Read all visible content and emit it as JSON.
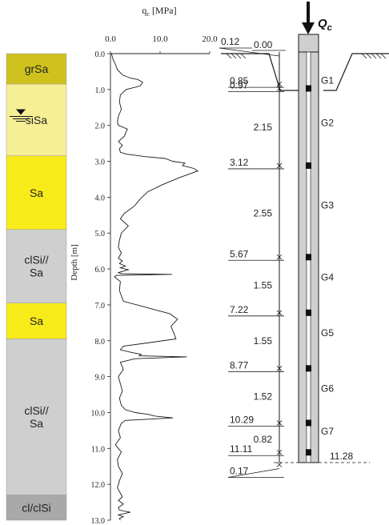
{
  "soil_column": {
    "layers": [
      {
        "label": "grSa",
        "color": "#cfc21e",
        "top": 0.0,
        "bottom": 0.85
      },
      {
        "label": "siSa",
        "color": "#f7ef95",
        "top": 0.85,
        "bottom": 2.85
      },
      {
        "label": "Sa",
        "color": "#f8eb1a",
        "top": 2.85,
        "bottom": 4.9
      },
      {
        "label": "clSi// Sa",
        "label_lines": [
          "clSi//",
          "Sa"
        ],
        "color": "#cfcfcf",
        "top": 4.9,
        "bottom": 6.95
      },
      {
        "label": "Sa",
        "color": "#f8eb1a",
        "top": 6.95,
        "bottom": 7.95
      },
      {
        "label": "clSi// Sa",
        "label_lines": [
          "clSi//",
          "Sa"
        ],
        "color": "#cfcfcf",
        "top": 7.95,
        "bottom": 12.3
      },
      {
        "label": "cl/clSi",
        "color": "#a9a9a9",
        "top": 12.3,
        "bottom": 13.0
      }
    ],
    "water_table_depth": 1.75
  },
  "cpt_chart": {
    "xlabel": "q",
    "xlabel_sub": "c",
    "xlabel_unit": " [MPa]",
    "ylabel": "Depth [m]",
    "xlim": [
      0,
      20
    ],
    "ylim": [
      0,
      13
    ],
    "xticks": [
      "0.0",
      "10.0",
      "20.0"
    ],
    "yticks": [
      "0.0",
      "1.0",
      "2.0",
      "3.0",
      "4.0",
      "5.0",
      "6.0",
      "7.0",
      "8.0",
      "9.0",
      "10.0",
      "11.0",
      "12.0",
      "13.0"
    ]
  },
  "chart_data": {
    "type": "line",
    "xlabel": "qc [MPa]",
    "ylabel": "Depth [m]",
    "xlim": [
      0,
      20
    ],
    "ylim": [
      0,
      13
    ],
    "series": [
      {
        "x": [
          0.2,
          0.5,
          1.0,
          1.4,
          2.5,
          4.0,
          5.5,
          6.5,
          6.0,
          3.2,
          2.0,
          1.8,
          2.2,
          1.6,
          1.4,
          1.6,
          3.4,
          2.8,
          1.6,
          2.4,
          1.8,
          2.0,
          3.2,
          7.0,
          11.0,
          12.5,
          15.0,
          14.5,
          16.8,
          17.6,
          16.0,
          14.0,
          10.5,
          7.5,
          6.0,
          4.8,
          2.8,
          2.0,
          3.6,
          2.2,
          1.8,
          1.6,
          2.2,
          1.6,
          2.4,
          1.8,
          3.0,
          2.0,
          3.6,
          2.4,
          1.6,
          2.2,
          12.4,
          1.2,
          0.8,
          2.0,
          1.8,
          2.6,
          8.0,
          12.0,
          13.5,
          12.2,
          12.8,
          13.2,
          8.0,
          2.6,
          2.0,
          4.0,
          6.2,
          5.8,
          15.4,
          5.0,
          2.0,
          2.6,
          1.6,
          2.0,
          2.4,
          1.8,
          2.2,
          3.0,
          5.0,
          7.5,
          9.0,
          12.6,
          3.0,
          2.2,
          1.6,
          2.0,
          1.0,
          2.2,
          1.4,
          1.6,
          2.4,
          1.8,
          1.4,
          2.0,
          2.4,
          1.6,
          2.6,
          1.6,
          1.8,
          4.0,
          1.6,
          2.6,
          1.8,
          2.0
        ],
        "y": [
          0.0,
          0.15,
          0.3,
          0.45,
          0.6,
          0.68,
          0.72,
          0.8,
          0.9,
          1.0,
          1.15,
          1.35,
          1.55,
          1.75,
          1.9,
          2.0,
          2.1,
          2.3,
          2.45,
          2.55,
          2.65,
          2.75,
          2.8,
          2.87,
          2.92,
          3.0,
          3.05,
          3.12,
          3.2,
          3.27,
          3.35,
          3.45,
          3.65,
          3.85,
          4.05,
          4.25,
          4.45,
          4.6,
          4.8,
          5.0,
          5.2,
          5.4,
          5.55,
          5.7,
          5.78,
          5.85,
          5.92,
          5.97,
          6.02,
          6.07,
          6.1,
          6.13,
          6.15,
          6.18,
          6.22,
          6.35,
          6.6,
          6.9,
          7.1,
          7.25,
          7.4,
          7.6,
          7.8,
          7.95,
          8.05,
          8.15,
          8.25,
          8.32,
          8.38,
          8.42,
          8.45,
          8.5,
          8.6,
          8.8,
          9.0,
          9.2,
          9.4,
          9.6,
          9.8,
          9.92,
          10.0,
          10.05,
          10.1,
          10.15,
          10.22,
          10.3,
          10.5,
          10.7,
          10.9,
          11.1,
          11.3,
          11.5,
          11.7,
          11.9,
          12.1,
          12.25,
          12.35,
          12.45,
          12.55,
          12.65,
          12.72,
          12.78,
          12.85,
          12.9,
          12.95,
          13.0
        ]
      }
    ]
  },
  "pile": {
    "load_label": "Q",
    "load_label_sub": "c",
    "cumulative_depths": [
      {
        "label": "0.12",
        "depth": 0.12
      },
      {
        "label": "0.85",
        "depth": 0.85
      },
      {
        "label": "0.97",
        "depth": 0.97
      },
      {
        "label": "3.12",
        "depth": 3.12
      },
      {
        "label": "5.67",
        "depth": 5.67
      },
      {
        "label": "7.22",
        "depth": 7.22
      },
      {
        "label": "8.77",
        "depth": 8.77
      },
      {
        "label": "10.29",
        "depth": 10.29
      },
      {
        "label": "11.11",
        "depth": 11.11
      },
      {
        "label": "0.17",
        "depth": 11.45
      }
    ],
    "head_level_label": "0.00",
    "segment_lengths": [
      {
        "label": "2.15",
        "depth": 2.05
      },
      {
        "label": "2.55",
        "depth": 4.45
      },
      {
        "label": "1.55",
        "depth": 6.45
      },
      {
        "label": "1.55",
        "depth": 8.0
      },
      {
        "label": "1.52",
        "depth": 9.55
      },
      {
        "label": "0.82",
        "depth": 10.75
      }
    ],
    "gauges": [
      {
        "label": "G1",
        "depth": 0.97
      },
      {
        "label": "G2",
        "depth": 2.15
      },
      {
        "label": "G3",
        "depth": 4.45
      },
      {
        "label": "G4",
        "depth": 6.45
      },
      {
        "label": "G5",
        "depth": 8.0
      },
      {
        "label": "G6",
        "depth": 9.55
      },
      {
        "label": "G7",
        "depth": 10.75
      }
    ],
    "toe_label": "11.28"
  },
  "colors": {
    "line": "#1a1a1a",
    "pile_fill": "#cfcfcf",
    "gauge": "#111111"
  }
}
